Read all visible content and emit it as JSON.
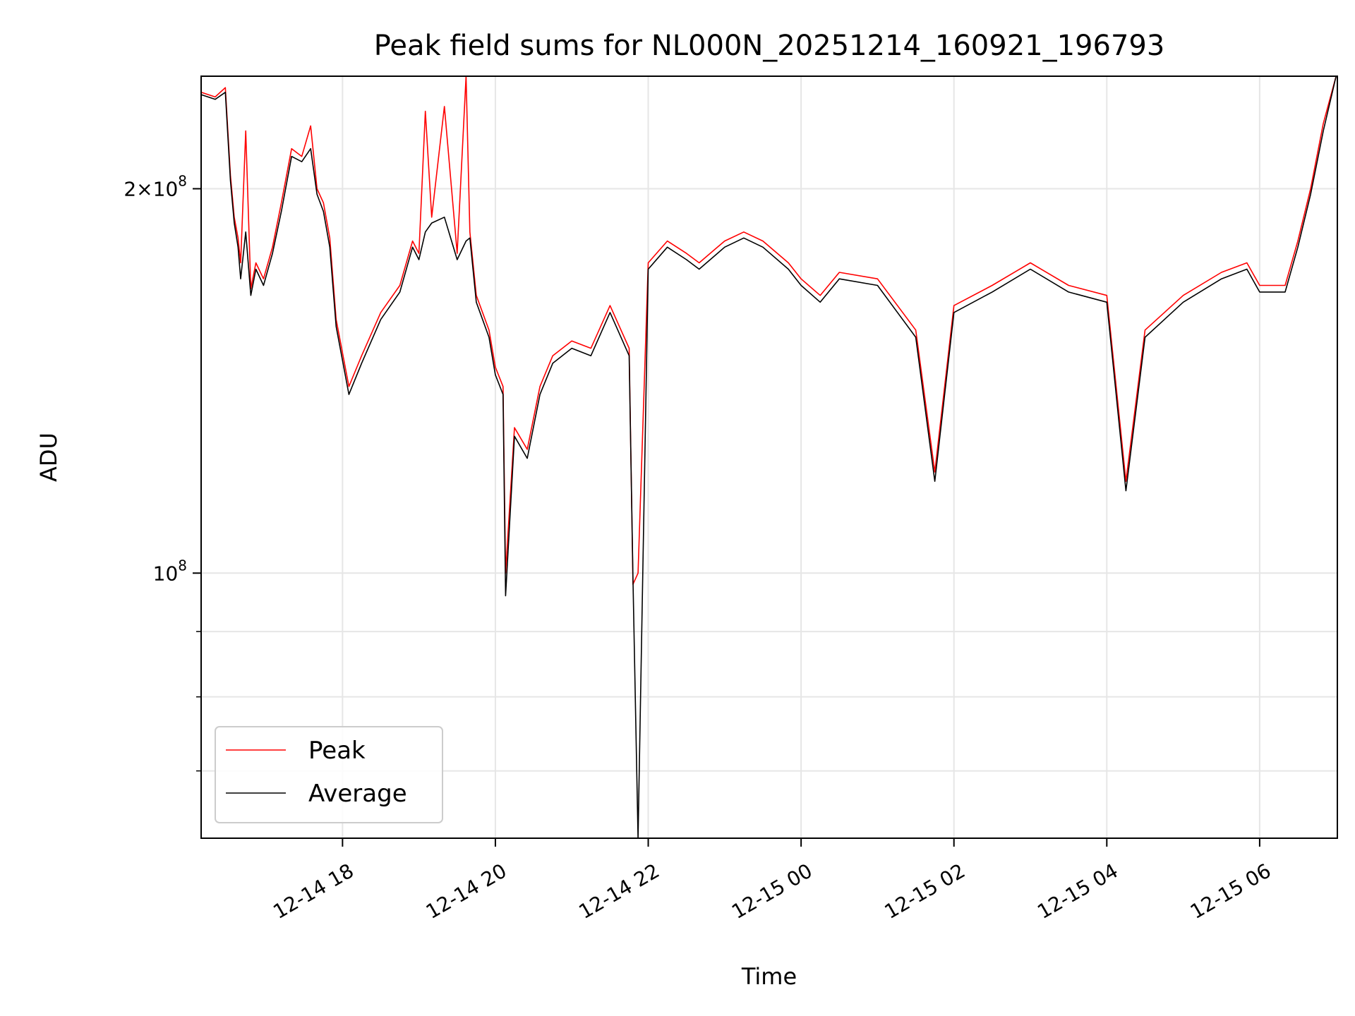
{
  "chart_data": {
    "type": "line",
    "title": "Peak field sums for NL000N_20251214_160921_196793",
    "xlabel": "Time",
    "ylabel": "ADU",
    "yscale": "log",
    "xlim": [
      "2025-12-14 16:09",
      "2025-12-15 07:01"
    ],
    "ylim": [
      62000000,
      245000000
    ],
    "x_ticks": [
      "2025-12-14 18:00",
      "2025-12-14 20:00",
      "2025-12-14 22:00",
      "2025-12-15 00:00",
      "2025-12-15 02:00",
      "2025-12-15 04:00",
      "2025-12-15 06:00"
    ],
    "x_tick_labels": [
      "12-14 18",
      "12-14 20",
      "12-14 22",
      "12-15 00",
      "12-15 02",
      "12-15 04",
      "12-15 06"
    ],
    "y_ticks": [
      100000000,
      200000000
    ],
    "y_tick_labels": [
      {
        "base": "10",
        "exp": "8"
      },
      {
        "coef": "2",
        "times": "×",
        "base": "10",
        "exp": "8"
      }
    ],
    "y_minor_ticks": [
      70000000,
      80000000,
      90000000,
      300000000
    ],
    "grid": true,
    "legend_position": "lower-left",
    "series": [
      {
        "name": "Peak",
        "color": "#ff0000",
        "x": [
          "2025-12-14 16:09",
          "2025-12-14 16:20",
          "2025-12-14 16:28",
          "2025-12-14 16:32",
          "2025-12-14 16:35",
          "2025-12-14 16:38",
          "2025-12-14 16:40",
          "2025-12-14 16:44",
          "2025-12-14 16:48",
          "2025-12-14 16:52",
          "2025-12-14 16:58",
          "2025-12-14 17:05",
          "2025-12-14 17:12",
          "2025-12-14 17:20",
          "2025-12-14 17:28",
          "2025-12-14 17:35",
          "2025-12-14 17:40",
          "2025-12-14 17:45",
          "2025-12-14 17:50",
          "2025-12-14 17:55",
          "2025-12-14 18:05",
          "2025-12-14 18:15",
          "2025-12-14 18:30",
          "2025-12-14 18:45",
          "2025-12-14 18:55",
          "2025-12-14 19:00",
          "2025-12-14 19:05",
          "2025-12-14 19:10",
          "2025-12-14 19:20",
          "2025-12-14 19:30",
          "2025-12-14 19:37",
          "2025-12-14 19:40",
          "2025-12-14 19:45",
          "2025-12-14 19:55",
          "2025-12-14 20:00",
          "2025-12-14 20:06",
          "2025-12-14 20:08",
          "2025-12-14 20:15",
          "2025-12-14 20:25",
          "2025-12-14 20:35",
          "2025-12-14 20:45",
          "2025-12-14 21:00",
          "2025-12-14 21:15",
          "2025-12-14 21:30",
          "2025-12-14 21:45",
          "2025-12-14 21:48",
          "2025-12-14 21:52",
          "2025-12-14 22:00",
          "2025-12-14 22:15",
          "2025-12-14 22:30",
          "2025-12-14 22:40",
          "2025-12-14 23:00",
          "2025-12-14 23:15",
          "2025-12-14 23:30",
          "2025-12-14 23:50",
          "2025-12-15 00:00",
          "2025-12-15 00:15",
          "2025-12-15 00:30",
          "2025-12-15 01:00",
          "2025-12-15 01:30",
          "2025-12-15 01:45",
          "2025-12-15 02:00",
          "2025-12-15 02:30",
          "2025-12-15 03:00",
          "2025-12-15 03:30",
          "2025-12-15 04:00",
          "2025-12-15 04:15",
          "2025-12-15 04:30",
          "2025-12-15 05:00",
          "2025-12-15 05:30",
          "2025-12-15 05:50",
          "2025-12-15 06:00",
          "2025-12-15 06:20",
          "2025-12-15 06:30",
          "2025-12-15 06:40",
          "2025-12-15 06:50",
          "2025-12-15 07:00"
        ],
        "values": [
          238000000,
          236000000,
          240000000,
          205000000,
          190000000,
          183000000,
          175000000,
          222000000,
          167000000,
          175000000,
          170000000,
          180000000,
          195000000,
          215000000,
          212000000,
          224000000,
          200000000,
          195000000,
          183000000,
          158000000,
          140000000,
          148000000,
          160000000,
          168000000,
          182000000,
          178000000,
          230000000,
          190000000,
          232000000,
          178000000,
          245000000,
          185000000,
          165000000,
          155000000,
          145000000,
          140000000,
          100000000,
          130000000,
          125000000,
          140000000,
          148000000,
          152000000,
          150000000,
          162000000,
          150000000,
          98000000,
          100000000,
          175000000,
          182000000,
          178000000,
          175000000,
          182000000,
          185000000,
          182000000,
          175000000,
          170000000,
          165000000,
          172000000,
          170000000,
          155000000,
          120000000,
          162000000,
          168000000,
          175000000,
          168000000,
          165000000,
          118000000,
          155000000,
          165000000,
          172000000,
          175000000,
          168000000,
          168000000,
          182000000,
          200000000,
          225000000,
          245000000
        ]
      },
      {
        "name": "Average",
        "color": "#000000",
        "x": [
          "2025-12-14 16:09",
          "2025-12-14 16:20",
          "2025-12-14 16:28",
          "2025-12-14 16:32",
          "2025-12-14 16:35",
          "2025-12-14 16:38",
          "2025-12-14 16:40",
          "2025-12-14 16:44",
          "2025-12-14 16:48",
          "2025-12-14 16:52",
          "2025-12-14 16:58",
          "2025-12-14 17:05",
          "2025-12-14 17:12",
          "2025-12-14 17:20",
          "2025-12-14 17:28",
          "2025-12-14 17:35",
          "2025-12-14 17:40",
          "2025-12-14 17:45",
          "2025-12-14 17:50",
          "2025-12-14 17:55",
          "2025-12-14 18:05",
          "2025-12-14 18:15",
          "2025-12-14 18:30",
          "2025-12-14 18:45",
          "2025-12-14 18:55",
          "2025-12-14 19:00",
          "2025-12-14 19:05",
          "2025-12-14 19:10",
          "2025-12-14 19:20",
          "2025-12-14 19:30",
          "2025-12-14 19:37",
          "2025-12-14 19:40",
          "2025-12-14 19:45",
          "2025-12-14 19:55",
          "2025-12-14 20:00",
          "2025-12-14 20:06",
          "2025-12-14 20:08",
          "2025-12-14 20:15",
          "2025-12-14 20:25",
          "2025-12-14 20:35",
          "2025-12-14 20:45",
          "2025-12-14 21:00",
          "2025-12-14 21:15",
          "2025-12-14 21:30",
          "2025-12-14 21:45",
          "2025-12-14 21:48",
          "2025-12-14 21:52",
          "2025-12-14 22:00",
          "2025-12-14 22:15",
          "2025-12-14 22:30",
          "2025-12-14 22:40",
          "2025-12-14 23:00",
          "2025-12-14 23:15",
          "2025-12-14 23:30",
          "2025-12-14 23:50",
          "2025-12-15 00:00",
          "2025-12-15 00:15",
          "2025-12-15 00:30",
          "2025-12-15 01:00",
          "2025-12-15 01:30",
          "2025-12-15 01:45",
          "2025-12-15 02:00",
          "2025-12-15 02:30",
          "2025-12-15 03:00",
          "2025-12-15 03:30",
          "2025-12-15 04:00",
          "2025-12-15 04:15",
          "2025-12-15 04:30",
          "2025-12-15 05:00",
          "2025-12-15 05:30",
          "2025-12-15 05:50",
          "2025-12-15 06:00",
          "2025-12-15 06:20",
          "2025-12-15 06:30",
          "2025-12-15 06:40",
          "2025-12-15 06:50",
          "2025-12-15 07:00"
        ],
        "values": [
          237000000,
          235000000,
          238000000,
          203000000,
          188000000,
          180000000,
          170000000,
          185000000,
          165000000,
          173000000,
          168000000,
          178000000,
          192000000,
          212000000,
          210000000,
          215000000,
          198000000,
          192000000,
          180000000,
          156000000,
          138000000,
          146000000,
          158000000,
          166000000,
          180000000,
          176000000,
          185000000,
          188000000,
          190000000,
          176000000,
          182000000,
          183000000,
          163000000,
          153000000,
          143000000,
          138000000,
          96000000,
          128000000,
          123000000,
          138000000,
          146000000,
          150000000,
          148000000,
          160000000,
          148000000,
          99000000,
          62000000,
          173000000,
          180000000,
          176000000,
          173000000,
          180000000,
          183000000,
          180000000,
          173000000,
          168000000,
          163000000,
          170000000,
          168000000,
          153000000,
          118000000,
          160000000,
          166000000,
          173000000,
          166000000,
          163000000,
          116000000,
          153000000,
          163000000,
          170000000,
          173000000,
          166000000,
          166000000,
          180000000,
          198000000,
          222000000,
          245000000
        ]
      }
    ]
  }
}
